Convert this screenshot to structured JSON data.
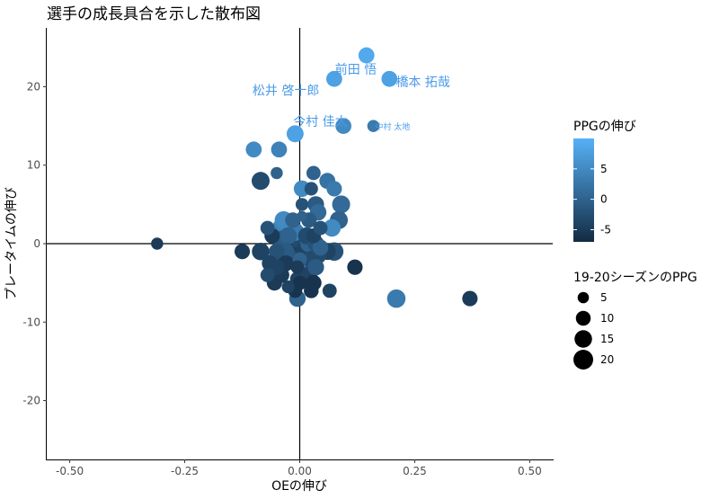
{
  "chart_data": {
    "type": "scatter",
    "title": "選手の成長具合を示した散布図",
    "xlabel": "OEの伸び",
    "ylabel": "プレータイムの伸び",
    "xlim": [
      -0.55,
      0.55
    ],
    "ylim": [
      -27.5,
      27.5
    ],
    "xticks": [
      -0.5,
      -0.25,
      0.0,
      0.25,
      0.5
    ],
    "xtick_labels": [
      "-0.50",
      "-0.25",
      "0.00",
      "0.25",
      "0.50"
    ],
    "yticks": [
      -20,
      -10,
      0,
      10,
      20
    ],
    "ytick_labels": [
      "-20",
      "-10",
      "0",
      "10",
      "20"
    ],
    "reference_lines": {
      "x": 0,
      "y": 0
    },
    "grid": false,
    "color_legend": {
      "title": "PPGの伸び",
      "range": [
        -7,
        10
      ],
      "ticks": [
        -5,
        0,
        5
      ],
      "tick_labels": [
        "-5",
        "0",
        "5"
      ],
      "low_color": "#132b43",
      "high_color": "#56b1f7"
    },
    "size_legend": {
      "title": "19-20シーズンのPPG",
      "values": [
        5,
        10,
        15,
        20
      ],
      "labels": [
        "5",
        "10",
        "15",
        "20"
      ]
    },
    "legend_position": "right",
    "labels": [
      {
        "text": "前田 悟",
        "x": 0.122,
        "y": 22.2,
        "size": 14
      },
      {
        "text": "橋本 拓哉",
        "x": 0.268,
        "y": 20.6,
        "size": 14
      },
      {
        "text": "松井 啓十郎",
        "x": -0.03,
        "y": 19.5,
        "size": 14
      },
      {
        "text": "今村 佳太",
        "x": 0.045,
        "y": 15.6,
        "size": 14
      },
      {
        "text": "中村 太地",
        "x": 0.202,
        "y": 14.9,
        "size": 9
      }
    ],
    "points": [
      {
        "x": 0.145,
        "y": 24,
        "ppg_growth": 9,
        "ppg": 12
      },
      {
        "x": 0.075,
        "y": 21,
        "ppg_growth": 8,
        "ppg": 12
      },
      {
        "x": 0.195,
        "y": 21,
        "ppg_growth": 8,
        "ppg": 12
      },
      {
        "x": 0.095,
        "y": 15,
        "ppg_growth": 5,
        "ppg": 12
      },
      {
        "x": 0.16,
        "y": 15,
        "ppg_growth": 3,
        "ppg": 6
      },
      {
        "x": -0.01,
        "y": 14,
        "ppg_growth": 8,
        "ppg": 14
      },
      {
        "x": -0.1,
        "y": 12,
        "ppg_growth": 5,
        "ppg": 12
      },
      {
        "x": -0.045,
        "y": 12,
        "ppg_growth": 4,
        "ppg": 12
      },
      {
        "x": -0.05,
        "y": 9,
        "ppg_growth": 0,
        "ppg": 6
      },
      {
        "x": 0.03,
        "y": 9,
        "ppg_growth": 0,
        "ppg": 9
      },
      {
        "x": 0.06,
        "y": 8,
        "ppg_growth": 2,
        "ppg": 12
      },
      {
        "x": -0.085,
        "y": 8,
        "ppg_growth": -3,
        "ppg": 16
      },
      {
        "x": 0.075,
        "y": 7,
        "ppg_growth": 3,
        "ppg": 11
      },
      {
        "x": 0.005,
        "y": 7,
        "ppg_growth": 5,
        "ppg": 13
      },
      {
        "x": 0.025,
        "y": 7,
        "ppg_growth": -2,
        "ppg": 8
      },
      {
        "x": 0.035,
        "y": 5,
        "ppg_growth": -1,
        "ppg": 13
      },
      {
        "x": 0.09,
        "y": 5,
        "ppg_growth": 1,
        "ppg": 16
      },
      {
        "x": 0.005,
        "y": 5,
        "ppg_growth": -2,
        "ppg": 7
      },
      {
        "x": 0.04,
        "y": 4,
        "ppg_growth": 1,
        "ppg": 13
      },
      {
        "x": 0.005,
        "y": 3.5,
        "ppg_growth": 0,
        "ppg": 4
      },
      {
        "x": 0.085,
        "y": 3,
        "ppg_growth": 0,
        "ppg": 16
      },
      {
        "x": 0.02,
        "y": 3,
        "ppg_growth": -1,
        "ppg": 11
      },
      {
        "x": -0.035,
        "y": 3,
        "ppg_growth": 5,
        "ppg": 16
      },
      {
        "x": -0.015,
        "y": 3,
        "ppg_growth": 0,
        "ppg": 11
      },
      {
        "x": 0.07,
        "y": 2,
        "ppg_growth": 5,
        "ppg": 15
      },
      {
        "x": 0.045,
        "y": 2,
        "ppg_growth": -2,
        "ppg": 9
      },
      {
        "x": -0.04,
        "y": 2,
        "ppg_growth": 4,
        "ppg": 17
      },
      {
        "x": -0.07,
        "y": 2,
        "ppg_growth": -2,
        "ppg": 9
      },
      {
        "x": -0.01,
        "y": 1.5,
        "ppg_growth": 3,
        "ppg": 16
      },
      {
        "x": 0.015,
        "y": 1,
        "ppg_growth": -3,
        "ppg": 14
      },
      {
        "x": -0.025,
        "y": 1,
        "ppg_growth": 0,
        "ppg": 14
      },
      {
        "x": 0.03,
        "y": 1,
        "ppg_growth": -4,
        "ppg": 10
      },
      {
        "x": -0.06,
        "y": 1,
        "ppg_growth": -5,
        "ppg": 11
      },
      {
        "x": 0.0,
        "y": 0.5,
        "ppg_growth": -3,
        "ppg": 17
      },
      {
        "x": -0.04,
        "y": 0.5,
        "ppg_growth": -1,
        "ppg": 15
      },
      {
        "x": 0.02,
        "y": 0,
        "ppg_growth": 0,
        "ppg": 15
      },
      {
        "x": 0.035,
        "y": 0,
        "ppg_growth": -2,
        "ppg": 13
      },
      {
        "x": 0.045,
        "y": -0.5,
        "ppg_growth": 0,
        "ppg": 12
      },
      {
        "x": -0.02,
        "y": 0,
        "ppg_growth": -5,
        "ppg": 18
      },
      {
        "x": -0.31,
        "y": 0,
        "ppg_growth": -5,
        "ppg": 6
      },
      {
        "x": -0.125,
        "y": -1,
        "ppg_growth": -5,
        "ppg": 11
      },
      {
        "x": -0.085,
        "y": -1,
        "ppg_growth": -4,
        "ppg": 15
      },
      {
        "x": -0.05,
        "y": -1,
        "ppg_growth": -2,
        "ppg": 12
      },
      {
        "x": -0.03,
        "y": -1,
        "ppg_growth": -1,
        "ppg": 14
      },
      {
        "x": 0.06,
        "y": -1,
        "ppg_growth": -4,
        "ppg": 14
      },
      {
        "x": 0.075,
        "y": -1,
        "ppg_growth": -2,
        "ppg": 17
      },
      {
        "x": 0.01,
        "y": -1,
        "ppg_growth": -4,
        "ppg": 16
      },
      {
        "x": 0.04,
        "y": -1.5,
        "ppg_growth": -3,
        "ppg": 13
      },
      {
        "x": -0.05,
        "y": -2,
        "ppg_growth": -3,
        "ppg": 16
      },
      {
        "x": -0.015,
        "y": -2,
        "ppg_growth": -2,
        "ppg": 17
      },
      {
        "x": 0.025,
        "y": -2,
        "ppg_growth": -3,
        "ppg": 14
      },
      {
        "x": -0.065,
        "y": -2.5,
        "ppg_growth": -4,
        "ppg": 12
      },
      {
        "x": -0.03,
        "y": -2.5,
        "ppg_growth": -5,
        "ppg": 12
      },
      {
        "x": 0.0,
        "y": -2,
        "ppg_growth": 0,
        "ppg": 9
      },
      {
        "x": 0.015,
        "y": -3,
        "ppg_growth": 2,
        "ppg": 18
      },
      {
        "x": 0.035,
        "y": -3,
        "ppg_growth": -1,
        "ppg": 13
      },
      {
        "x": -0.05,
        "y": -3,
        "ppg_growth": -4,
        "ppg": 11
      },
      {
        "x": -0.005,
        "y": -3,
        "ppg_growth": -5,
        "ppg": 8
      },
      {
        "x": 0.12,
        "y": -3,
        "ppg_growth": -6,
        "ppg": 11
      },
      {
        "x": -0.07,
        "y": -4,
        "ppg_growth": -3,
        "ppg": 9
      },
      {
        "x": 0.02,
        "y": -4,
        "ppg_growth": -4,
        "ppg": 14
      },
      {
        "x": -0.04,
        "y": -4,
        "ppg_growth": -5,
        "ppg": 12
      },
      {
        "x": -0.005,
        "y": -4.5,
        "ppg_growth": -4,
        "ppg": 10
      },
      {
        "x": 0.03,
        "y": -5,
        "ppg_growth": -6,
        "ppg": 12
      },
      {
        "x": -0.055,
        "y": -5,
        "ppg_growth": -5,
        "ppg": 11
      },
      {
        "x": 0.0,
        "y": -5,
        "ppg_growth": -6,
        "ppg": 9
      },
      {
        "x": -0.025,
        "y": -5.5,
        "ppg_growth": -4,
        "ppg": 7
      },
      {
        "x": 0.025,
        "y": -6,
        "ppg_growth": -6,
        "ppg": 10
      },
      {
        "x": 0.065,
        "y": -6,
        "ppg_growth": -4,
        "ppg": 9
      },
      {
        "x": -0.01,
        "y": -6,
        "ppg_growth": -6,
        "ppg": 9
      },
      {
        "x": 0.21,
        "y": -7,
        "ppg_growth": 3,
        "ppg": 17
      },
      {
        "x": 0.37,
        "y": -7,
        "ppg_growth": -5,
        "ppg": 11
      },
      {
        "x": -0.005,
        "y": -7,
        "ppg_growth": 0,
        "ppg": 13
      }
    ]
  }
}
